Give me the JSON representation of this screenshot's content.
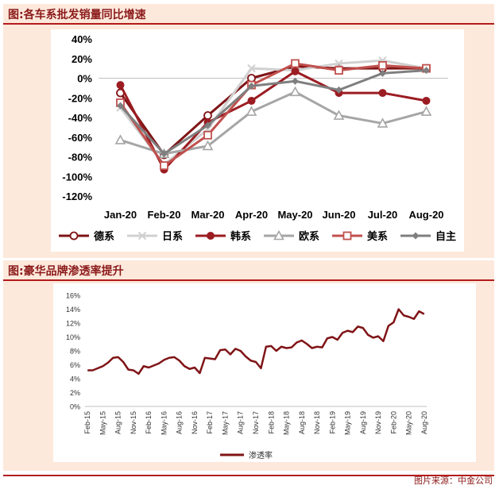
{
  "panel1": {
    "title": "图:各车系批发销量同比增速"
  },
  "panel2": {
    "title": "图:豪华品牌渗透率提升"
  },
  "source": "图片来源：中金公司",
  "colors": {
    "title": "#8b1a1a",
    "rule": "#b31b1b",
    "panel_bg": "#fde9dc"
  },
  "chart_data": [
    {
      "type": "line",
      "title": "",
      "categories": [
        "Jan-20",
        "Feb-20",
        "Mar-20",
        "Apr-20",
        "May-20",
        "Jun-20",
        "Jul-20",
        "Aug-20"
      ],
      "ylim": [
        -120,
        40
      ],
      "yticks": [
        -120,
        -100,
        -80,
        -60,
        -40,
        -20,
        0,
        20,
        40
      ],
      "ytick_labels": [
        "-120%",
        "-100%",
        "-80%",
        "-60%",
        "-40%",
        "-20%",
        "0%",
        "20%",
        "40%"
      ],
      "legend_position": "bottom",
      "grid": false,
      "series": [
        {
          "name": "德系",
          "color": "#7f1416",
          "marker": "circle-open",
          "values": [
            -15,
            -78,
            -38,
            0,
            12,
            10,
            10,
            10
          ]
        },
        {
          "name": "日系",
          "color": "#d0d0d0",
          "marker": "x",
          "values": [
            -30,
            -88,
            -52,
            10,
            8,
            15,
            18,
            10
          ]
        },
        {
          "name": "韩系",
          "color": "#9b1c22",
          "marker": "circle-filled",
          "values": [
            -7,
            -93,
            -45,
            -23,
            7,
            -15,
            -15,
            -23
          ]
        },
        {
          "name": "欧系",
          "color": "#a6a6a6",
          "marker": "triangle-open",
          "values": [
            -63,
            -77,
            -69,
            -34,
            -14,
            -38,
            -46,
            -34
          ]
        },
        {
          "name": "美系",
          "color": "#c0504d",
          "marker": "square-open",
          "values": [
            -25,
            -89,
            -58,
            -7,
            15,
            8,
            13,
            10
          ]
        },
        {
          "name": "自主",
          "color": "#7f7f7f",
          "marker": "diamond-filled",
          "values": [
            -28,
            -77,
            -48,
            -8,
            -3,
            -12,
            5,
            8
          ]
        }
      ]
    },
    {
      "type": "line",
      "title": "",
      "ylim": [
        0,
        16
      ],
      "yticks": [
        0,
        2,
        4,
        6,
        8,
        10,
        12,
        14,
        16
      ],
      "ytick_labels": [
        "0%",
        "2%",
        "4%",
        "6%",
        "8%",
        "10%",
        "12%",
        "14%",
        "16%"
      ],
      "x_start": "Feb-15",
      "xtick_labels": [
        "Feb-15",
        "May-15",
        "Aug-15",
        "Nov-15",
        "Feb-16",
        "May-16",
        "Aug-16",
        "Nov-16",
        "Feb-17",
        "May-17",
        "Aug-17",
        "Nov-17",
        "Feb-18",
        "May-18",
        "Aug-18",
        "Nov-18",
        "Feb-19",
        "May-19",
        "Aug-19",
        "Nov-19",
        "Feb-20",
        "May-20",
        "Aug-20"
      ],
      "legend_position": "bottom",
      "series": [
        {
          "name": "渗透率",
          "color": "#7f1416",
          "values": [
            5.2,
            5.2,
            5.5,
            5.8,
            6.3,
            7.0,
            7.1,
            6.4,
            5.3,
            5.2,
            4.7,
            5.8,
            5.6,
            5.9,
            6.2,
            6.7,
            7.0,
            7.1,
            6.6,
            5.8,
            5.4,
            5.6,
            4.8,
            7.0,
            6.9,
            6.8,
            8.1,
            8.2,
            7.5,
            8.3,
            8.0,
            7.2,
            6.6,
            6.4,
            5.5,
            8.6,
            8.7,
            8.0,
            8.6,
            8.4,
            8.5,
            9.2,
            9.5,
            9.0,
            8.4,
            8.6,
            8.5,
            9.8,
            10.0,
            9.6,
            10.6,
            10.9,
            10.7,
            11.5,
            11.3,
            10.3,
            9.9,
            10.1,
            9.4,
            11.6,
            12.1,
            14.0,
            13.1,
            12.9,
            12.6,
            13.7,
            13.3
          ]
        }
      ]
    }
  ]
}
